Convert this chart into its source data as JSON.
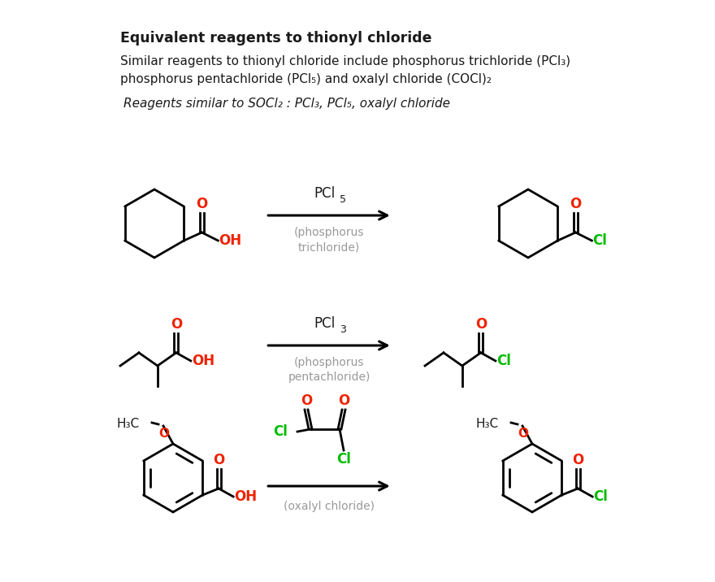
{
  "title": "Equivalent reagents to thionyl chloride",
  "subtitle_line1": "Similar reagents to thionyl chloride include phosphorus trichloride (PCl₃)",
  "subtitle_line2": "phosphorus pentachloride (PCl₅) and oxalyl chloride (COCl)₂",
  "subtitle_line3": "Reagents similar to SOCl₂ : PCl₃, PCl₅, oxalyl chloride",
  "background": "#ffffff",
  "text_color": "#1a1a1a",
  "red_color": "#ee2200",
  "green_color": "#00bb00",
  "gray_color": "#999999",
  "arrow_color": "#111111",
  "lw": 2.0
}
